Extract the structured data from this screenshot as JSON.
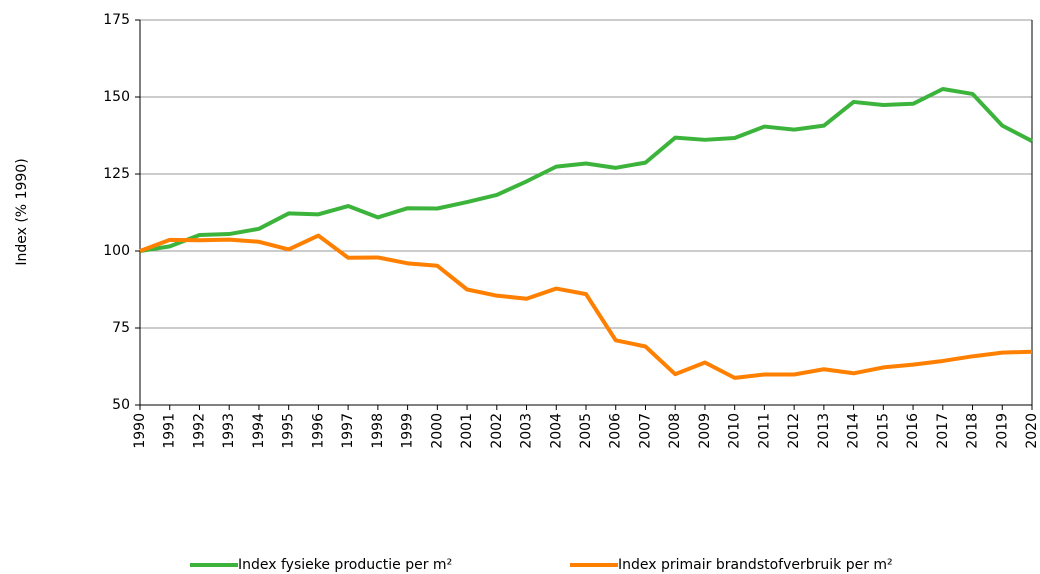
{
  "chart_data": {
    "type": "line",
    "y_label": "Index (% 1990)",
    "categories": [
      "1990",
      "1991",
      "1992",
      "1993",
      "1994",
      "1995",
      "1996",
      "1997",
      "1998",
      "1999",
      "2000",
      "2001",
      "2002",
      "2003",
      "2004",
      "2005",
      "2006",
      "2007",
      "2008",
      "2009",
      "2010",
      "2011",
      "2012",
      "2013",
      "2014",
      "2015",
      "2016",
      "2017",
      "2018",
      "2019",
      "2020"
    ],
    "series": [
      {
        "name": "Index fysieke productie per m²",
        "color": "#3cb43c",
        "values": [
          100,
          101.5,
          105.2,
          105.5,
          107.2,
          112.2,
          111.9,
          114.6,
          110.9,
          113.9,
          113.8,
          115.9,
          118.2,
          122.6,
          127.4,
          128.4,
          127,
          128.7,
          136.8,
          136.1,
          136.7,
          140.4,
          139.4,
          140.7,
          148.4,
          147.4,
          147.8,
          152.6,
          151,
          140.7,
          135.7
        ]
      },
      {
        "name": "Index primair brandstofverbruik per m²",
        "color": "#ff8000",
        "values": [
          100,
          103.6,
          103.5,
          103.7,
          103,
          100.5,
          105,
          97.8,
          97.9,
          96,
          95.2,
          87.5,
          85.5,
          84.5,
          87.8,
          86,
          71,
          69,
          60,
          63.8,
          58.8,
          59.9,
          59.9,
          61.6,
          60.3,
          62.2,
          63.1,
          64.3,
          65.8,
          67,
          67.3
        ]
      }
    ],
    "ylim": [
      50,
      175
    ],
    "yticks": [
      50,
      75,
      100,
      125,
      150,
      175
    ],
    "grid": true,
    "legend": "bottom"
  }
}
